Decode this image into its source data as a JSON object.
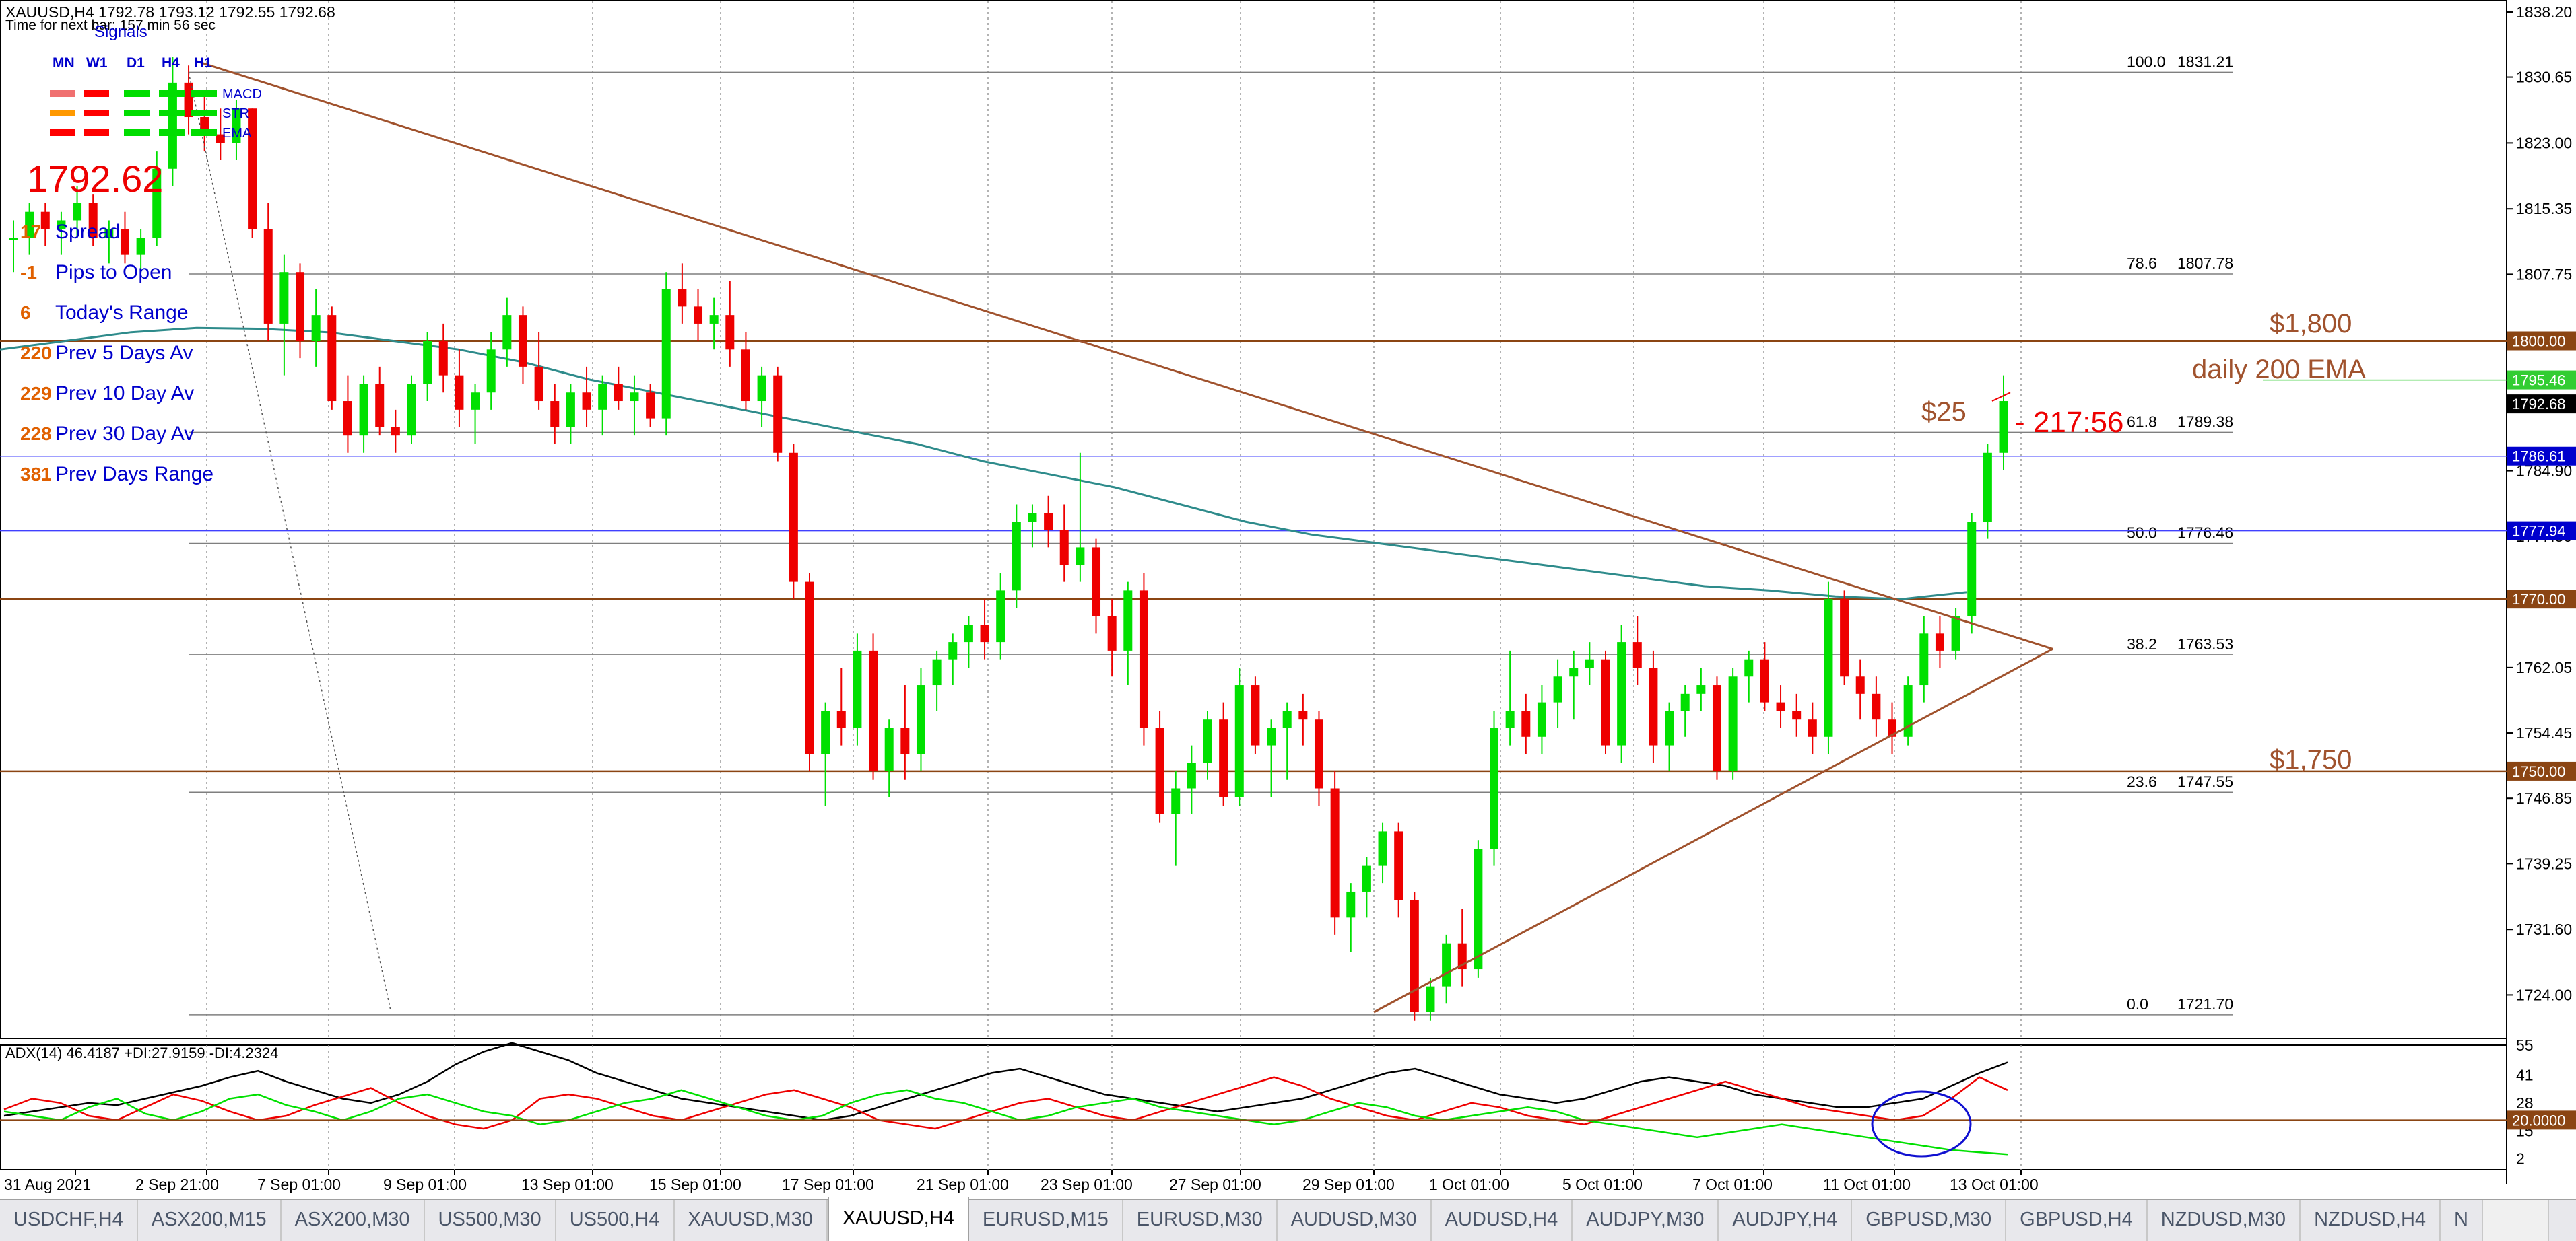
{
  "header": {
    "symbol_line": "XAUUSD,H4  1792.78 1793.12 1792.55 1792.68",
    "timer_line": "Time for next bar: 157 min 56 sec",
    "signals_title": "Signals",
    "timeframes": [
      "MN",
      "W1",
      "D1",
      "H4",
      "H1"
    ],
    "signal_rows": [
      {
        "label": "MACD",
        "colors": [
          "#f07070",
          "#ff0000",
          "#00dd00",
          "#00dd00",
          "#00dd00"
        ]
      },
      {
        "label": "STR",
        "colors": [
          "#ff9900",
          "#ff0000",
          "#00dd00",
          "#00dd00",
          "#00dd00"
        ]
      },
      {
        "label": "EMA",
        "colors": [
          "#ff0000",
          "#ff0000",
          "#00dd00",
          "#00dd00",
          "#00dd00"
        ]
      }
    ]
  },
  "stats": {
    "price": "1792.62",
    "rows": [
      {
        "value": "17",
        "label": "Spread"
      },
      {
        "value": "-1",
        "label": "Pips to Open"
      },
      {
        "value": "6",
        "label": "Today's Range"
      },
      {
        "value": "220",
        "label": "Prev 5 Days Av"
      },
      {
        "value": "229",
        "label": "Prev 10 Day Av"
      },
      {
        "value": "228",
        "label": "Prev 30 Day Av"
      },
      {
        "value": "381",
        "label": "Prev Days Range"
      }
    ]
  },
  "annotations": {
    "level_1800": "$1,800",
    "daily_ema": "daily 200 EMA",
    "level_1750": "$1,750",
    "dollar_25": "$25",
    "countdown": "- 217:56"
  },
  "fib_levels": [
    {
      "pct": "100.0",
      "price": 1831.21
    },
    {
      "pct": "78.6",
      "price": 1807.78
    },
    {
      "pct": "61.8",
      "price": 1789.38
    },
    {
      "pct": "50.0",
      "price": 1776.46
    },
    {
      "pct": "38.2",
      "price": 1763.53
    },
    {
      "pct": "23.6",
      "price": 1747.55
    },
    {
      "pct": "0.0",
      "price": 1721.7
    }
  ],
  "axis": {
    "price_ticks": [
      "1838.20",
      "1830.65",
      "1823.00",
      "1815.35",
      "1807.75",
      "1800.15",
      "1792.50",
      "1784.90",
      "1777.30",
      "1769.70",
      "1762.05",
      "1754.45",
      "1746.85",
      "1739.25",
      "1731.60",
      "1724.00"
    ],
    "price_labels": [
      {
        "text": "1800.00",
        "value": 1800.0,
        "bg": "#8b4513",
        "fg": "#ffffff"
      },
      {
        "text": "1795.46",
        "value": 1795.46,
        "bg": "#32cd32",
        "fg": "#ffffff"
      },
      {
        "text": "1792.68",
        "value": 1792.68,
        "bg": "#000000",
        "fg": "#ffffff"
      },
      {
        "text": "1786.61",
        "value": 1786.61,
        "bg": "#0000cd",
        "fg": "#ffffff"
      },
      {
        "text": "1777.94",
        "value": 1777.94,
        "bg": "#0000cd",
        "fg": "#ffffff"
      },
      {
        "text": "1770.00",
        "value": 1770.0,
        "bg": "#8b4513",
        "fg": "#ffffff"
      },
      {
        "text": "1750.00",
        "value": 1750.0,
        "bg": "#8b4513",
        "fg": "#ffffff"
      }
    ],
    "adx_ticks": [
      "55",
      "41",
      "28",
      "15",
      "2"
    ],
    "adx_label": {
      "text": "20.0000",
      "bg": "#8b4513",
      "fg": "#ffffff"
    },
    "time_labels": [
      "31 Aug 2021",
      "2 Sep 21:00",
      "7 Sep 01:00",
      "9 Sep 01:00",
      "13 Sep 01:00",
      "15 Sep 01:00",
      "17 Sep 01:00",
      "21 Sep 01:00",
      "23 Sep 01:00",
      "27 Sep 01:00",
      "29 Sep 01:00",
      "1 Oct 01:00",
      "5 Oct 01:00",
      "7 Oct 01:00",
      "11 Oct 01:00",
      "13 Oct 01:00"
    ]
  },
  "indicator": {
    "title": "ADX(14) 46.4187 +DI:27.9159 -DI:4.2324"
  },
  "colors": {
    "bull": "#00e000",
    "bear": "#ee0000",
    "ema": "#2e8b8b",
    "trend": "#a0522d",
    "fib": "#7f7f7f",
    "level": "#8b4513",
    "blue_line": "#4040ff"
  },
  "candles": [
    [
      1812,
      1814,
      1808,
      1812
    ],
    [
      1812,
      1816,
      1810,
      1815
    ],
    [
      1815,
      1816,
      1811,
      1813
    ],
    [
      1813,
      1815,
      1810,
      1814
    ],
    [
      1814,
      1818,
      1812,
      1816
    ],
    [
      1816,
      1817,
      1811,
      1812
    ],
    [
      1812,
      1814,
      1809,
      1813
    ],
    [
      1813,
      1815,
      1809,
      1810
    ],
    [
      1810,
      1813,
      1808,
      1812
    ],
    [
      1812,
      1822,
      1811,
      1820
    ],
    [
      1820,
      1833,
      1818,
      1830
    ],
    [
      1830,
      1832,
      1824,
      1826
    ],
    [
      1826,
      1829,
      1822,
      1824
    ],
    [
      1824,
      1827,
      1821,
      1823
    ],
    [
      1823,
      1828,
      1821,
      1827
    ],
    [
      1827,
      1827,
      1812,
      1813
    ],
    [
      1813,
      1816,
      1800,
      1802
    ],
    [
      1802,
      1810,
      1796,
      1808
    ],
    [
      1808,
      1809,
      1798,
      1800
    ],
    [
      1800,
      1806,
      1797,
      1803
    ],
    [
      1803,
      1804,
      1792,
      1793
    ],
    [
      1793,
      1796,
      1787,
      1789
    ],
    [
      1789,
      1796,
      1787,
      1795
    ],
    [
      1795,
      1797,
      1789,
      1790
    ],
    [
      1790,
      1792,
      1787,
      1789
    ],
    [
      1789,
      1796,
      1788,
      1795
    ],
    [
      1795,
      1801,
      1793,
      1800
    ],
    [
      1800,
      1802,
      1794,
      1796
    ],
    [
      1796,
      1799,
      1790,
      1792
    ],
    [
      1792,
      1795,
      1788,
      1794
    ],
    [
      1794,
      1801,
      1792,
      1799
    ],
    [
      1799,
      1805,
      1797,
      1803
    ],
    [
      1803,
      1804,
      1795,
      1797
    ],
    [
      1797,
      1801,
      1792,
      1793
    ],
    [
      1793,
      1795,
      1788,
      1790
    ],
    [
      1790,
      1795,
      1788,
      1794
    ],
    [
      1794,
      1797,
      1790,
      1792
    ],
    [
      1792,
      1796,
      1789,
      1795
    ],
    [
      1795,
      1797,
      1792,
      1793
    ],
    [
      1793,
      1796,
      1789,
      1794
    ],
    [
      1794,
      1795,
      1790,
      1791
    ],
    [
      1791,
      1808,
      1789,
      1806
    ],
    [
      1806,
      1809,
      1802,
      1804
    ],
    [
      1804,
      1806,
      1800,
      1802
    ],
    [
      1802,
      1805,
      1799,
      1803
    ],
    [
      1803,
      1807,
      1797,
      1799
    ],
    [
      1799,
      1801,
      1792,
      1793
    ],
    [
      1793,
      1797,
      1790,
      1796
    ],
    [
      1796,
      1797,
      1786,
      1787
    ],
    [
      1787,
      1788,
      1770,
      1772
    ],
    [
      1772,
      1773,
      1750,
      1752
    ],
    [
      1752,
      1758,
      1746,
      1757
    ],
    [
      1757,
      1762,
      1753,
      1755
    ],
    [
      1755,
      1766,
      1753,
      1764
    ],
    [
      1764,
      1766,
      1749,
      1750
    ],
    [
      1750,
      1756,
      1747,
      1755
    ],
    [
      1755,
      1760,
      1749,
      1752
    ],
    [
      1752,
      1762,
      1750,
      1760
    ],
    [
      1760,
      1764,
      1757,
      1763
    ],
    [
      1763,
      1766,
      1760,
      1765
    ],
    [
      1765,
      1768,
      1762,
      1767
    ],
    [
      1767,
      1770,
      1763,
      1765
    ],
    [
      1765,
      1773,
      1763,
      1771
    ],
    [
      1771,
      1781,
      1769,
      1779
    ],
    [
      1779,
      1781,
      1776,
      1780
    ],
    [
      1780,
      1782,
      1776,
      1778
    ],
    [
      1778,
      1781,
      1772,
      1774
    ],
    [
      1774,
      1787,
      1772,
      1776
    ],
    [
      1776,
      1777,
      1766,
      1768
    ],
    [
      1768,
      1770,
      1761,
      1764
    ],
    [
      1764,
      1772,
      1760,
      1771
    ],
    [
      1771,
      1773,
      1753,
      1755
    ],
    [
      1755,
      1757,
      1744,
      1745
    ],
    [
      1745,
      1750,
      1739,
      1748
    ],
    [
      1748,
      1753,
      1745,
      1751
    ],
    [
      1751,
      1757,
      1749,
      1756
    ],
    [
      1756,
      1758,
      1746,
      1747
    ],
    [
      1747,
      1762,
      1746,
      1760
    ],
    [
      1760,
      1761,
      1752,
      1753
    ],
    [
      1753,
      1756,
      1747,
      1755
    ],
    [
      1755,
      1758,
      1749,
      1757
    ],
    [
      1757,
      1759,
      1753,
      1756
    ],
    [
      1756,
      1757,
      1746,
      1748
    ],
    [
      1748,
      1750,
      1731,
      1733
    ],
    [
      1733,
      1737,
      1729,
      1736
    ],
    [
      1736,
      1740,
      1733,
      1739
    ],
    [
      1739,
      1744,
      1737,
      1743
    ],
    [
      1743,
      1744,
      1733,
      1735
    ],
    [
      1735,
      1736,
      1721,
      1722
    ],
    [
      1722,
      1726,
      1721,
      1725
    ],
    [
      1725,
      1731,
      1723,
      1730
    ],
    [
      1730,
      1734,
      1725,
      1727
    ],
    [
      1727,
      1742,
      1726,
      1741
    ],
    [
      1741,
      1757,
      1739,
      1755
    ],
    [
      1755,
      1764,
      1753,
      1757
    ],
    [
      1757,
      1759,
      1752,
      1754
    ],
    [
      1754,
      1760,
      1752,
      1758
    ],
    [
      1758,
      1763,
      1755,
      1761
    ],
    [
      1761,
      1764,
      1756,
      1762
    ],
    [
      1762,
      1765,
      1760,
      1763
    ],
    [
      1763,
      1764,
      1752,
      1753
    ],
    [
      1753,
      1767,
      1751,
      1765
    ],
    [
      1765,
      1768,
      1760,
      1762
    ],
    [
      1762,
      1764,
      1751,
      1753
    ],
    [
      1753,
      1758,
      1750,
      1757
    ],
    [
      1757,
      1760,
      1754,
      1759
    ],
    [
      1759,
      1762,
      1757,
      1760
    ],
    [
      1760,
      1761,
      1749,
      1750
    ],
    [
      1750,
      1762,
      1749,
      1761
    ],
    [
      1761,
      1764,
      1758,
      1763
    ],
    [
      1763,
      1765,
      1757,
      1758
    ],
    [
      1758,
      1760,
      1755,
      1757
    ],
    [
      1757,
      1759,
      1754,
      1756
    ],
    [
      1756,
      1758,
      1752,
      1754
    ],
    [
      1754,
      1772,
      1752,
      1770
    ],
    [
      1770,
      1771,
      1760,
      1761
    ],
    [
      1761,
      1763,
      1756,
      1759
    ],
    [
      1759,
      1761,
      1754,
      1756
    ],
    [
      1756,
      1758,
      1752,
      1754
    ],
    [
      1754,
      1761,
      1753,
      1760
    ],
    [
      1760,
      1768,
      1758,
      1766
    ],
    [
      1766,
      1768,
      1762,
      1764
    ],
    [
      1764,
      1769,
      1763,
      1768
    ],
    [
      1768,
      1780,
      1766,
      1779
    ],
    [
      1779,
      1788,
      1777,
      1787
    ],
    [
      1787,
      1796,
      1785,
      1793
    ]
  ],
  "ema200": [
    1799.0,
    1800.0,
    1801.0,
    1801.5,
    1801.4,
    1801.0,
    1800.0,
    1799.0,
    1797.5,
    1795.5,
    1794.0,
    1792.5,
    1791.0,
    1789.5,
    1788.0,
    1786.0,
    1784.5,
    1783.0,
    1781.0,
    1779.0,
    1777.5,
    1776.5,
    1775.5,
    1774.5,
    1773.5,
    1772.5,
    1771.5,
    1771.0,
    1770.3,
    1770.0,
    1770.8
  ],
  "adx": [
    [
      22,
      25,
      24
    ],
    [
      24,
      30,
      22
    ],
    [
      26,
      28,
      20
    ],
    [
      28,
      22,
      26
    ],
    [
      27,
      20,
      30
    ],
    [
      30,
      26,
      23
    ],
    [
      33,
      32,
      20
    ],
    [
      36,
      29,
      24
    ],
    [
      40,
      24,
      30
    ],
    [
      43,
      20,
      32
    ],
    [
      38,
      22,
      27
    ],
    [
      34,
      27,
      24
    ],
    [
      30,
      31,
      20
    ],
    [
      28,
      35,
      24
    ],
    [
      32,
      28,
      30
    ],
    [
      38,
      22,
      32
    ],
    [
      46,
      18,
      28
    ],
    [
      52,
      16,
      24
    ],
    [
      56,
      20,
      22
    ],
    [
      52,
      30,
      18
    ],
    [
      48,
      32,
      20
    ],
    [
      42,
      30,
      24
    ],
    [
      38,
      26,
      28
    ],
    [
      34,
      22,
      30
    ],
    [
      30,
      20,
      34
    ],
    [
      28,
      24,
      30
    ],
    [
      26,
      28,
      26
    ],
    [
      24,
      32,
      22
    ],
    [
      22,
      34,
      20
    ],
    [
      20,
      30,
      22
    ],
    [
      22,
      26,
      28
    ],
    [
      26,
      20,
      32
    ],
    [
      30,
      18,
      34
    ],
    [
      34,
      16,
      30
    ],
    [
      38,
      20,
      28
    ],
    [
      42,
      24,
      24
    ],
    [
      44,
      28,
      20
    ],
    [
      40,
      30,
      22
    ],
    [
      36,
      26,
      26
    ],
    [
      32,
      22,
      28
    ],
    [
      30,
      20,
      30
    ],
    [
      28,
      24,
      26
    ],
    [
      26,
      28,
      24
    ],
    [
      24,
      32,
      22
    ],
    [
      26,
      36,
      20
    ],
    [
      28,
      40,
      18
    ],
    [
      30,
      36,
      20
    ],
    [
      34,
      30,
      24
    ],
    [
      38,
      26,
      28
    ],
    [
      42,
      22,
      26
    ],
    [
      44,
      20,
      22
    ],
    [
      40,
      24,
      20
    ],
    [
      36,
      28,
      22
    ],
    [
      32,
      26,
      24
    ],
    [
      30,
      22,
      26
    ],
    [
      28,
      20,
      24
    ],
    [
      30,
      18,
      20
    ],
    [
      34,
      22,
      18
    ],
    [
      38,
      26,
      16
    ],
    [
      40,
      30,
      14
    ],
    [
      38,
      34,
      12
    ],
    [
      36,
      38,
      14
    ],
    [
      32,
      34,
      16
    ],
    [
      30,
      30,
      18
    ],
    [
      28,
      26,
      16
    ],
    [
      26,
      24,
      14
    ],
    [
      26,
      22,
      12
    ],
    [
      28,
      20,
      10
    ],
    [
      30,
      22,
      8
    ],
    [
      36,
      30,
      6
    ],
    [
      42,
      40,
      5
    ],
    [
      47,
      34,
      4
    ]
  ]
}
